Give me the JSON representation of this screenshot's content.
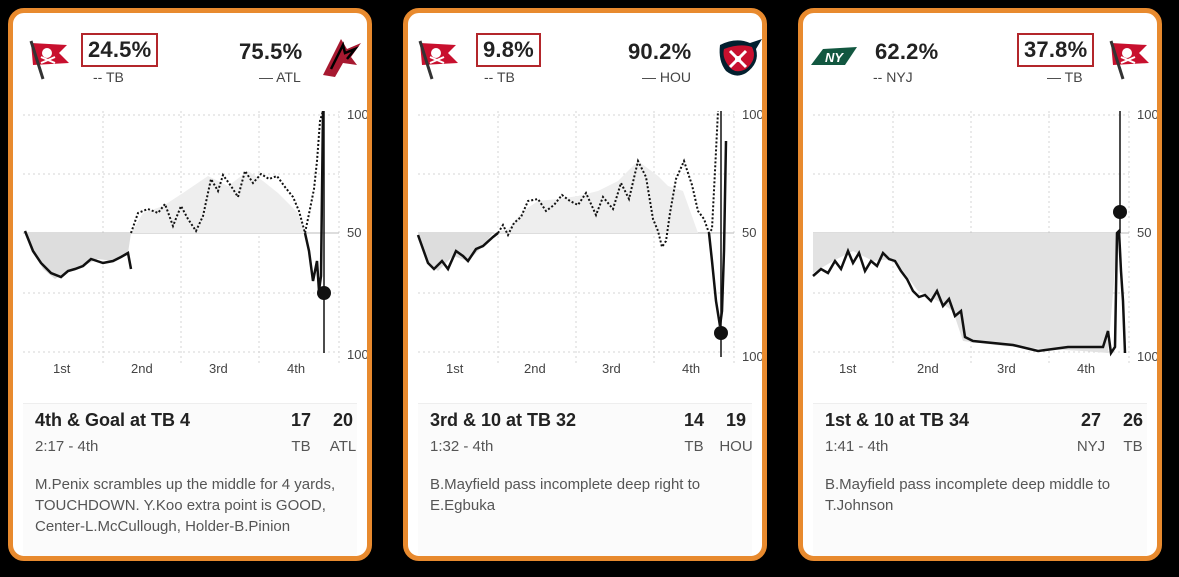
{
  "cards": [
    {
      "left_pct": "24.5%",
      "left_team": "-- TB",
      "right_pct": "75.5%",
      "right_team": "— ATL",
      "quarters": [
        "1st",
        "2nd",
        "3rd",
        "4th"
      ],
      "y_top": "100",
      "y_mid": "50",
      "y_bot": "100",
      "situation": "4th & Goal at TB 4",
      "time": "2:17 - 4th",
      "score_a": "17",
      "team_a": "TB",
      "score_b": "20",
      "team_b": "ATL",
      "play": "M.Penix scrambles up the middle for 4 yards, TOUCHDOWN. Y.Koo extra point is GOOD, Center-L.McCullough, Holder-B.Pinion"
    },
    {
      "left_pct": "9.8%",
      "left_team": "-- TB",
      "right_pct": "90.2%",
      "right_team": "— HOU",
      "quarters": [
        "1st",
        "2nd",
        "3rd",
        "4th"
      ],
      "y_top": "100",
      "y_mid": "50",
      "y_bot": "100",
      "situation": "3rd & 10 at TB 32",
      "time": "1:32 - 4th",
      "score_a": "14",
      "team_a": "TB",
      "score_b": "19",
      "team_b": "HOU",
      "play": "B.Mayfield pass incomplete deep right to E.Egbuka"
    },
    {
      "left_pct": "62.2%",
      "left_team": "-- NYJ",
      "right_pct": "37.8%",
      "right_team": "— TB",
      "quarters": [
        "1st",
        "2nd",
        "3rd",
        "4th"
      ],
      "y_top": "100",
      "y_mid": "50",
      "y_bot": "100",
      "situation": "1st & 10 at TB 34",
      "time": "1:41 - 4th",
      "score_a": "27",
      "team_a": "NYJ",
      "score_b": "26",
      "team_b": "TB",
      "play": "B.Mayfield pass incomplete deep middle to T.Johnson"
    }
  ],
  "logos": {
    "nyj_text": "NY"
  },
  "colors": {
    "card_border": "#e88a2e",
    "highlight_box": "#b3262b",
    "bucs_red": "#c8102e",
    "texans_navy": "#03202f",
    "jets_green": "#125740"
  }
}
